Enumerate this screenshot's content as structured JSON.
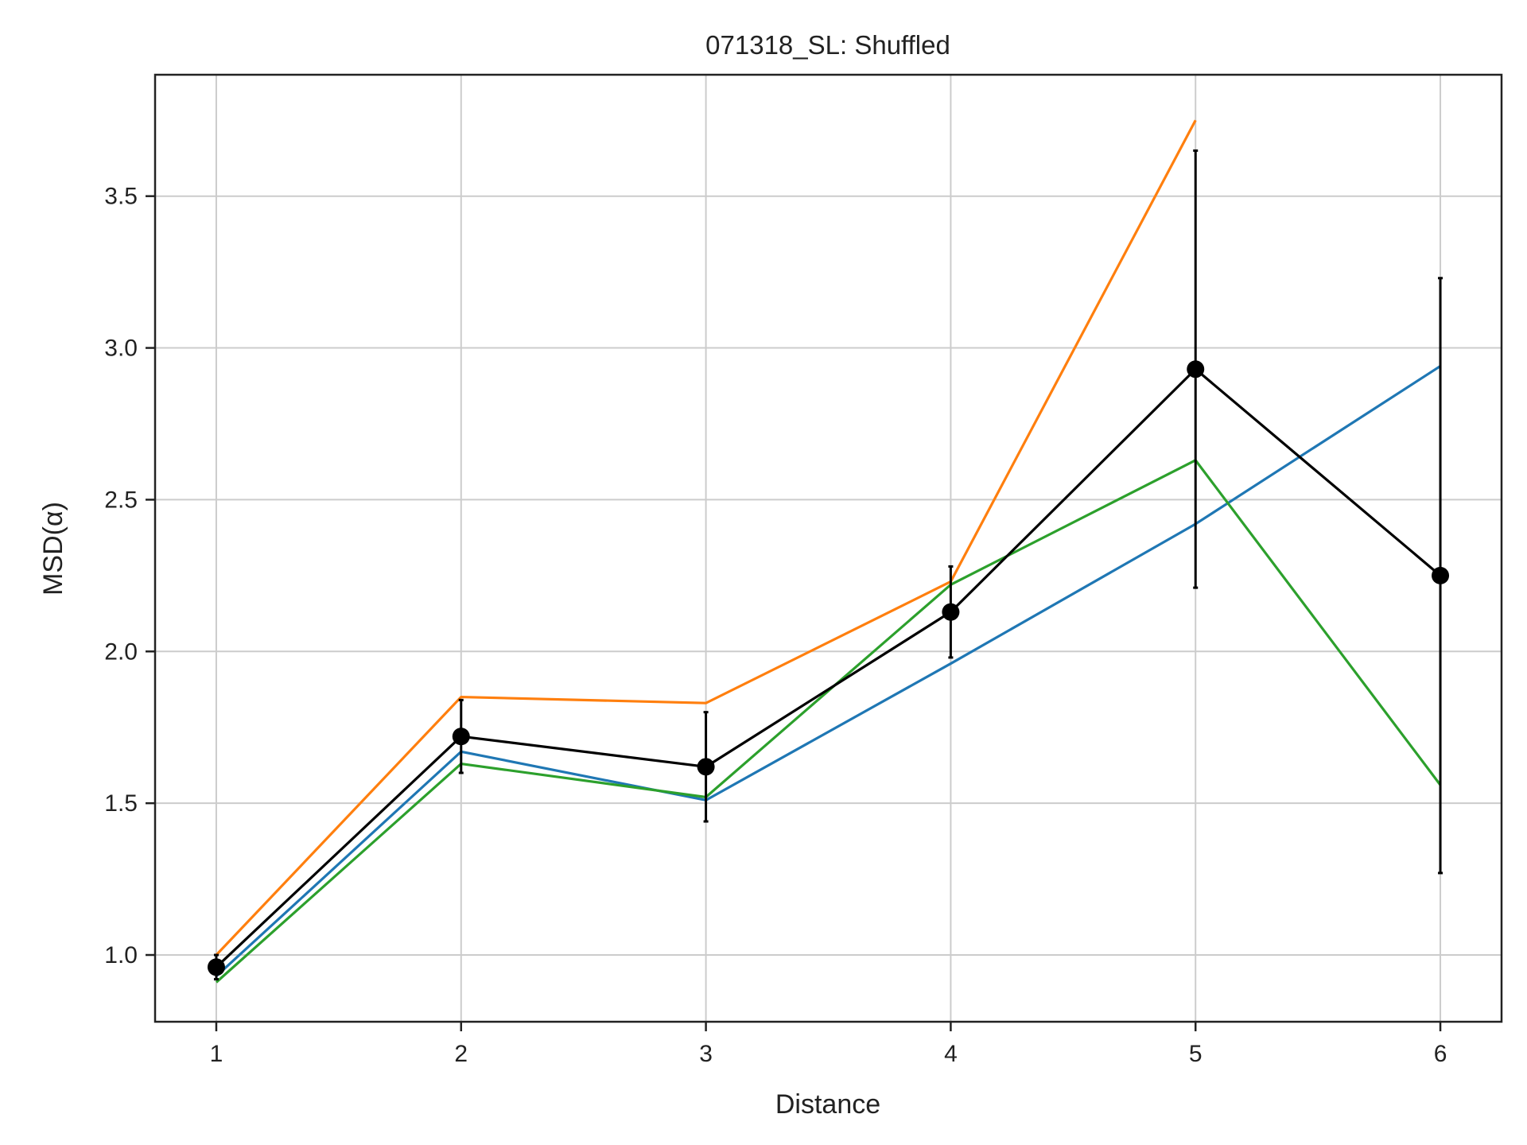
{
  "chart_data": {
    "type": "line",
    "title": "071318_SL: Shuffled",
    "xlabel": "Distance",
    "ylabel": "MSD(α)",
    "xlim": [
      0.75,
      6.25
    ],
    "ylim": [
      0.78,
      3.9
    ],
    "xticks": [
      1,
      2,
      3,
      4,
      5,
      6
    ],
    "yticks": [
      1.0,
      1.5,
      2.0,
      2.5,
      3.0,
      3.5
    ],
    "xtick_labels": [
      "1",
      "2",
      "3",
      "4",
      "5",
      "6"
    ],
    "ytick_labels": [
      "1.0",
      "1.5",
      "2.0",
      "2.5",
      "3.0",
      "3.5"
    ],
    "grid": true,
    "x": [
      1,
      2,
      3,
      4,
      5,
      6
    ],
    "series": [
      {
        "color": "#1f77b4",
        "values": [
          0.93,
          1.67,
          1.51,
          1.96,
          2.42,
          2.94
        ]
      },
      {
        "color": "#ff7f0e",
        "values": [
          1.0,
          1.85,
          1.83,
          2.23,
          3.75,
          null
        ]
      },
      {
        "color": "#2ca02c",
        "values": [
          0.91,
          1.63,
          1.52,
          2.22,
          2.63,
          1.56
        ]
      },
      {
        "color": "#000000",
        "values": [
          0.96,
          1.72,
          1.62,
          2.13,
          2.93,
          2.25
        ],
        "errors": [
          0.04,
          0.12,
          0.18,
          0.15,
          0.72,
          0.98
        ],
        "markers": true
      }
    ]
  }
}
